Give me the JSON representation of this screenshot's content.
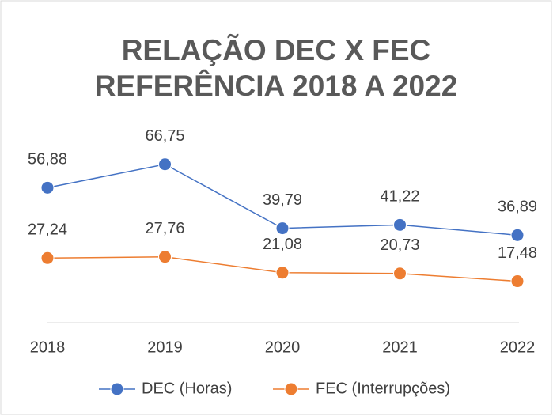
{
  "chart_data": {
    "type": "line",
    "title": [
      "RELAÇÃO DEC X FEC",
      "REFERÊNCIA 2018 A 2022"
    ],
    "categories": [
      "2018",
      "2019",
      "2020",
      "2021",
      "2022"
    ],
    "series": [
      {
        "name": "DEC (Horas)",
        "color": "#4472c4",
        "values": [
          56.88,
          66.75,
          39.79,
          41.22,
          36.89
        ],
        "value_labels": [
          "56,88",
          "66,75",
          "39,79",
          "41,22",
          "36,89"
        ]
      },
      {
        "name": "FEC (Interrupções)",
        "color": "#ed7d31",
        "values": [
          27.24,
          27.76,
          21.08,
          20.73,
          17.48
        ],
        "value_labels": [
          "27,24",
          "27,76",
          "21,08",
          "20,73",
          "17,48"
        ]
      }
    ],
    "ylim": [
      0,
      80
    ],
    "legend": "bottom"
  }
}
